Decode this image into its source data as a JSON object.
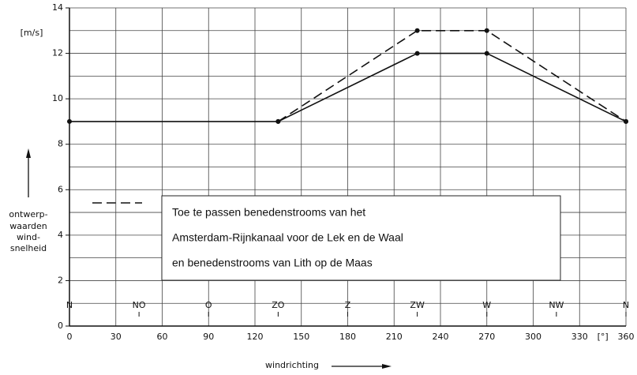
{
  "chart_data": {
    "type": "line",
    "y_unit": "[m/s]",
    "x_unit": "[°]",
    "ylabel": [
      "ontwerp-",
      "waarden",
      "wind-",
      "snelheid"
    ],
    "xlabel": "windrichting",
    "xlim": [
      0,
      360
    ],
    "xticks": [
      0,
      30,
      60,
      90,
      120,
      150,
      180,
      210,
      240,
      270,
      300,
      330,
      360
    ],
    "ylim": [
      0,
      14
    ],
    "yticks": [
      0,
      2,
      4,
      6,
      8,
      10,
      12,
      14
    ],
    "yminor": [
      1,
      3,
      5,
      7,
      9,
      11,
      13
    ],
    "grid": true,
    "compass": {
      "labels": [
        "N",
        "NO",
        "O",
        "ZO",
        "Z",
        "ZW",
        "W",
        "NW",
        "N"
      ],
      "positions": [
        0,
        45,
        90,
        135,
        180,
        225,
        270,
        315,
        360
      ]
    },
    "series": [
      {
        "style": "solid",
        "color": "#111111",
        "x": [
          0,
          135,
          225,
          270,
          360
        ],
        "values": [
          9,
          9,
          12,
          12,
          9
        ]
      },
      {
        "style": "dashed",
        "color": "#111111",
        "x": [
          135,
          225,
          270,
          360
        ],
        "values": [
          9,
          13,
          13,
          9
        ]
      }
    ],
    "legend_text": [
      "Toe te passen benedenstrooms van het",
      "Amsterdam-Rijnkanaal voor de Lek en de Waal",
      "en benedenstrooms van Lith op de Maas"
    ]
  }
}
